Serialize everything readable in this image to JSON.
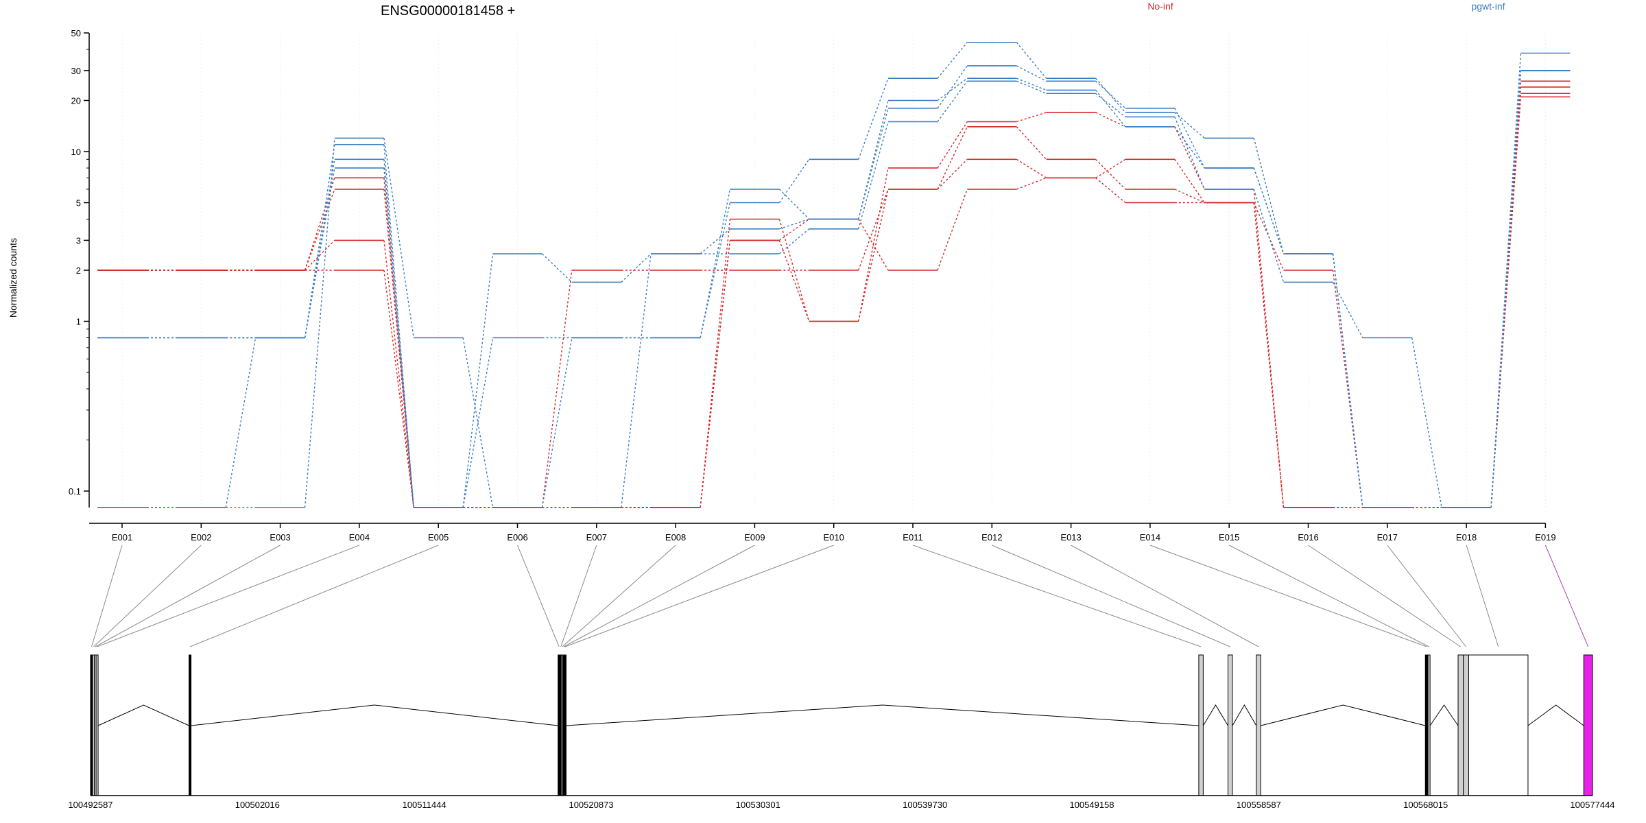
{
  "chart_data": {
    "type": "line",
    "title": "ENSG00000181458 +",
    "ylabel": "Normalized counts",
    "yscale": "log",
    "ylim": [
      0.08,
      50
    ],
    "yticks": [
      0.1,
      1,
      2,
      3,
      5,
      10,
      20,
      30,
      50
    ],
    "ytick_labels": [
      "0.1",
      "1",
      "2",
      "3",
      "5",
      "10",
      "20",
      "30",
      "50"
    ],
    "categories": [
      "E001",
      "E002",
      "E003",
      "E004",
      "E005",
      "E006",
      "E007",
      "E008",
      "E009",
      "E010",
      "E011",
      "E012",
      "E013",
      "E014",
      "E015",
      "E016",
      "E017",
      "E018",
      "E019"
    ],
    "series": [
      {
        "name": "No-inf",
        "color": "#d62728",
        "values": [
          2,
          2,
          2,
          6,
          0.08,
          0.08,
          2,
          2,
          2,
          2,
          6,
          9,
          7,
          9,
          5,
          2,
          0.08,
          0.08,
          21
        ]
      },
      {
        "name": "No-inf",
        "color": "#d62728",
        "values": [
          2,
          2,
          2,
          7,
          0.08,
          0.08,
          0.08,
          0.08,
          4,
          1,
          6,
          14,
          9,
          6,
          5,
          0.08,
          0.08,
          0.08,
          22
        ]
      },
      {
        "name": "No-inf",
        "color": "#d62728",
        "values": [
          2,
          2,
          2,
          3,
          0.08,
          0.08,
          0.08,
          0.08,
          3,
          1,
          8,
          15,
          17,
          14,
          6,
          0.08,
          0.08,
          0.08,
          24
        ]
      },
      {
        "name": "No-inf",
        "color": "#d62728",
        "values": [
          2,
          2,
          2,
          2,
          0.08,
          0.08,
          0.08,
          0.08,
          3,
          4,
          2,
          6,
          7,
          5,
          5,
          0.08,
          0.08,
          0.08,
          26
        ]
      },
      {
        "name": "pgwt-inf",
        "color": "#3a7dc4",
        "values": [
          0.08,
          0.08,
          0.08,
          12,
          0.8,
          0.08,
          0.8,
          0.8,
          5,
          9,
          27,
          44,
          27,
          17,
          12,
          2.5,
          0.08,
          0.08,
          38
        ]
      },
      {
        "name": "pgwt-inf",
        "color": "#3a7dc4",
        "values": [
          0.8,
          0.8,
          0.8,
          11,
          0.08,
          0.8,
          0.8,
          0.8,
          6,
          4,
          18,
          32,
          26,
          18,
          8,
          2.5,
          0.08,
          0.08,
          30
        ]
      },
      {
        "name": "pgwt-inf",
        "color": "#3a7dc4",
        "values": [
          0.8,
          0.8,
          0.8,
          9,
          0.08,
          2.5,
          1.7,
          2.5,
          3.5,
          4,
          20,
          27,
          23,
          14,
          8,
          2.5,
          0.08,
          0.08,
          30
        ]
      },
      {
        "name": "pgwt-inf",
        "color": "#3a7dc4",
        "values": [
          0.08,
          0.08,
          0.8,
          8,
          0.08,
          0.08,
          0.08,
          2.5,
          2.5,
          3.5,
          15,
          26,
          22,
          16,
          6,
          1.7,
          0.8,
          0.08,
          30
        ]
      }
    ],
    "legend": [
      {
        "label": "No-inf",
        "color": "#d62728",
        "position": "top-center"
      },
      {
        "label": "pgwt-inf",
        "color": "#3a7dc4",
        "position": "top-right"
      }
    ],
    "gene_model": {
      "coordinate_labels": [
        "100492587",
        "100502016",
        "100511444",
        "100520873",
        "100530301",
        "100539730",
        "100549158",
        "100558587",
        "100568015",
        "100577444"
      ],
      "coordinate_range": [
        100492587,
        100577444
      ],
      "exons": [
        {
          "id": "E001",
          "start": 100492587,
          "end": 100492700,
          "fill": "#000000"
        },
        {
          "id": "E002",
          "start": 100492700,
          "end": 100492800,
          "fill": "#d0d0d0"
        },
        {
          "id": "E003",
          "start": 100492800,
          "end": 100492900,
          "fill": "#d0d0d0"
        },
        {
          "id": "E004",
          "start": 100492900,
          "end": 100493000,
          "fill": "#d0d0d0"
        },
        {
          "id": "E005",
          "start": 100498150,
          "end": 100498230,
          "fill": "#000000"
        },
        {
          "id": "E006",
          "start": 100519000,
          "end": 100519100,
          "fill": "#000000"
        },
        {
          "id": "E007",
          "start": 100519100,
          "end": 100519180,
          "fill": "#000000"
        },
        {
          "id": "E008",
          "start": 100519180,
          "end": 100519260,
          "fill": "#d0d0d0"
        },
        {
          "id": "E009",
          "start": 100519260,
          "end": 100519340,
          "fill": "#000000"
        },
        {
          "id": "E010",
          "start": 100519340,
          "end": 100519430,
          "fill": "#000000"
        },
        {
          "id": "E011",
          "start": 100555200,
          "end": 100555450,
          "fill": "#d0d0d0"
        },
        {
          "id": "E012",
          "start": 100556850,
          "end": 100557100,
          "fill": "#d0d0d0"
        },
        {
          "id": "E013",
          "start": 100558450,
          "end": 100558700,
          "fill": "#d0d0d0"
        },
        {
          "id": "E014",
          "start": 100568000,
          "end": 100568150,
          "fill": "#000000"
        },
        {
          "id": "E015",
          "start": 100568150,
          "end": 100568250,
          "fill": "#d0d0d0"
        },
        {
          "id": "E016",
          "start": 100569850,
          "end": 100570150,
          "fill": "#d0d0d0"
        },
        {
          "id": "E017",
          "start": 100570150,
          "end": 100570450,
          "fill": "#d0d0d0"
        },
        {
          "id": "E018",
          "start": 100570450,
          "end": 100573800,
          "fill": "#ffffff"
        },
        {
          "id": "E019",
          "start": 100576950,
          "end": 100577444,
          "fill": "#e620e6"
        }
      ]
    }
  }
}
